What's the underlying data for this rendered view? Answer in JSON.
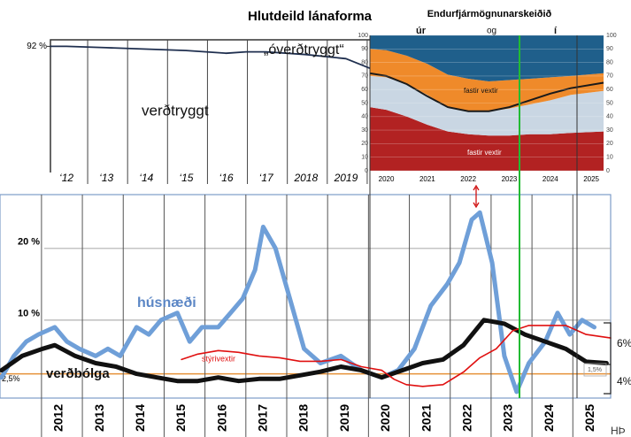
{
  "chart_data": [
    {
      "type": "line",
      "title": "Hlutdeild lánaforma",
      "xlim": [
        2011.6,
        2019.6
      ],
      "xticks": [
        {
          "value": 2012,
          "label": "‘12"
        },
        {
          "value": 2013,
          "label": "‘13"
        },
        {
          "value": 2014,
          "label": "‘14"
        },
        {
          "value": 2015,
          "label": "‘15"
        },
        {
          "value": 2016,
          "label": "‘16"
        },
        {
          "value": 2017,
          "label": "‘17"
        },
        2018,
        2019
      ],
      "ylim": [
        0,
        100
      ],
      "yticks": [
        {
          "value": 92,
          "label": "92 %"
        }
      ],
      "annotations": [
        "verðtryggt",
        "„óverðtryggt“"
      ],
      "series": [
        {
          "color": "#1f2f4f",
          "x": [
            2011.6,
            2012,
            2013,
            2014,
            2015,
            2016,
            2016.5,
            2017,
            2018,
            2019,
            2019.6
          ],
          "values": [
            92,
            92,
            91,
            90,
            89,
            87,
            88,
            88,
            86,
            83,
            76
          ]
        }
      ]
    },
    {
      "type": "area",
      "title": "Endurfjármögnunarskeiðið",
      "annotations": [
        "úr",
        "og",
        "í",
        "fastir vextir",
        "fastir vextir"
      ],
      "xlim": [
        2019.6,
        2025.3
      ],
      "xticks": [
        2020,
        2021,
        2022,
        2023,
        2024,
        2025
      ],
      "ylim": [
        0,
        100
      ],
      "yticks": [
        0,
        10,
        20,
        30,
        40,
        50,
        60,
        70,
        80,
        90,
        100
      ],
      "x": [
        2019.6,
        2020,
        2020.5,
        2021,
        2021.5,
        2022,
        2022.5,
        2023,
        2023.5,
        2024,
        2024.5,
        2025.3
      ],
      "series": [
        {
          "color": "#b22222",
          "values": [
            47,
            45,
            40,
            34,
            29,
            27,
            26,
            26,
            27,
            27,
            28,
            29
          ]
        },
        {
          "color": "#c9d6e3",
          "values": [
            23,
            24,
            24,
            22,
            18,
            17,
            18,
            20,
            22,
            25,
            28,
            30
          ]
        },
        {
          "color": "#ef8a2a",
          "values": [
            20,
            20,
            21,
            23,
            24,
            24,
            22,
            21,
            19,
            17,
            14,
            13
          ]
        },
        {
          "color": "#1f5f8b",
          "values": [
            10,
            11,
            15,
            21,
            29,
            32,
            34,
            33,
            32,
            31,
            30,
            28
          ]
        }
      ],
      "line": {
        "color": "#1a1a1a",
        "values": [
          72,
          70,
          64,
          55,
          47,
          44,
          44,
          47,
          52,
          57,
          61,
          65
        ]
      }
    },
    {
      "type": "line",
      "xlim": [
        2010.66,
        2025.6
      ],
      "xticks": [
        2012,
        2013,
        2014,
        2015,
        2016,
        2017,
        2018,
        2019,
        2020,
        2021,
        2022,
        2023,
        2024,
        2025
      ],
      "ylim": [
        -1,
        27.5
      ],
      "yticks": [
        {
          "value": 20,
          "label": "20 %"
        },
        {
          "value": 10,
          "label": "10 %"
        },
        {
          "value": 2.5,
          "label": "2,5%"
        }
      ],
      "grid_colors": [
        "#b0b0b0",
        "#b0b0b0",
        "#e69138"
      ],
      "annotations": [
        "6%",
        "4%",
        "1,5%",
        "HÞ"
      ],
      "series": [
        {
          "name": "húsnæði",
          "color": "#6f9fd8",
          "width": 5,
          "x": [
            2010.7,
            2011,
            2011.3,
            2011.6,
            2012,
            2012.3,
            2012.6,
            2013,
            2013.3,
            2013.6,
            2014,
            2014.3,
            2014.6,
            2015,
            2015.3,
            2015.6,
            2016,
            2016.3,
            2016.6,
            2016.9,
            2017.1,
            2017.4,
            2017.8,
            2018.1,
            2018.5,
            2019,
            2019.5,
            2020,
            2020.4,
            2020.8,
            2021.2,
            2021.6,
            2021.9,
            2022.2,
            2022.4,
            2022.7,
            2023,
            2023.3,
            2023.6,
            2024,
            2024.3,
            2024.6,
            2024.9,
            2025.2
          ],
          "values": [
            2,
            5,
            7,
            8,
            9,
            7,
            6,
            5,
            6,
            5,
            9,
            8,
            10,
            11,
            7,
            9,
            9,
            11,
            13,
            17,
            23,
            20,
            12,
            6,
            4,
            5,
            3,
            2,
            3,
            6,
            12,
            15,
            18,
            24,
            25,
            18,
            5,
            0,
            4,
            7,
            11,
            8,
            10,
            9
          ]
        },
        {
          "name": "verðbólga",
          "color": "#111111",
          "width": 5,
          "x": [
            2010.7,
            2011.2,
            2011.7,
            2012,
            2012.5,
            2013,
            2013.5,
            2014,
            2014.5,
            2015,
            2015.5,
            2016,
            2016.5,
            2017,
            2017.5,
            2018,
            2018.5,
            2019,
            2019.5,
            2020,
            2020.5,
            2021,
            2021.5,
            2022,
            2022.5,
            2023,
            2023.5,
            2024,
            2024.5,
            2025,
            2025.5
          ],
          "values": [
            3,
            5,
            6,
            6.5,
            5,
            4,
            3.5,
            2.5,
            2,
            1.5,
            1.5,
            2,
            1.5,
            1.8,
            1.8,
            2.3,
            2.8,
            3.5,
            3,
            2,
            3,
            4,
            4.5,
            6.5,
            10,
            9.5,
            8,
            7,
            6,
            4.2,
            4
          ]
        },
        {
          "name": "stýrivextir",
          "color": "#e01010",
          "width": 1.6,
          "x": [
            2015.1,
            2015.5,
            2016,
            2016.5,
            2017,
            2017.5,
            2018,
            2018.5,
            2019,
            2019.5,
            2020,
            2020.3,
            2020.6,
            2021,
            2021.5,
            2022,
            2022.4,
            2022.8,
            2023.2,
            2023.6,
            2024,
            2024.5,
            2025,
            2025.6
          ],
          "values": [
            4.5,
            5.25,
            5.75,
            5.5,
            5,
            4.75,
            4.25,
            4.25,
            4.5,
            3.5,
            3,
            1.75,
            1,
            0.75,
            1,
            2.75,
            4.75,
            6,
            8.5,
            9.25,
            9.25,
            9.25,
            8,
            7.5
          ]
        }
      ]
    }
  ]
}
